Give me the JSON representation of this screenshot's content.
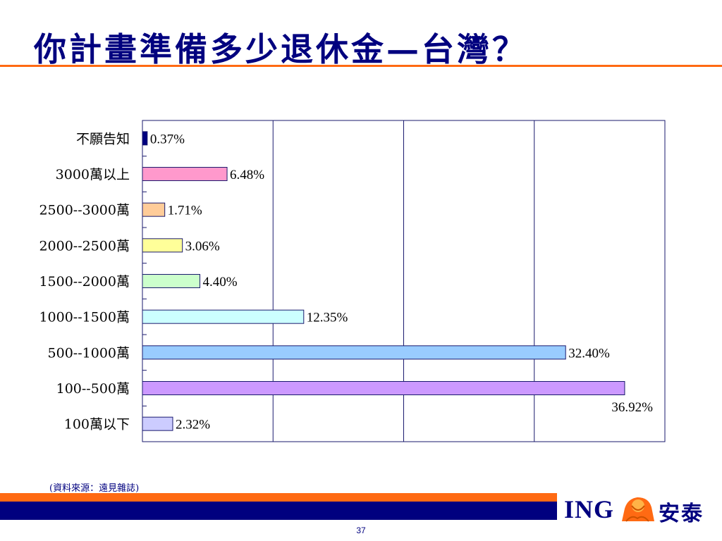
{
  "title": "你計畫準備多少退休金—台灣？",
  "source_note": "(資料來源：遠見雜誌)",
  "page_number": "37",
  "logo": {
    "brand": "ING",
    "name": "安泰",
    "lion_icon": "lion-icon"
  },
  "colors": {
    "title": "#00007f",
    "accent_orange": "#ff6a13",
    "navy": "#00007f",
    "gridline": "#1a1a6e"
  },
  "chart_data": {
    "type": "bar",
    "orientation": "horizontal",
    "categories": [
      "不願告知",
      "3000萬以上",
      "2500--3000萬",
      "2000--2500萬",
      "1500--2000萬",
      "1000--1500萬",
      "500--1000萬",
      "100--500萬",
      "100萬以下"
    ],
    "values": [
      0.37,
      6.48,
      1.71,
      3.06,
      4.4,
      12.35,
      32.4,
      36.92,
      2.32
    ],
    "value_labels": [
      "0.37%",
      "6.48%",
      "1.71%",
      "3.06%",
      "4.40%",
      "12.35%",
      "32.40%",
      "36.92%",
      "2.32%"
    ],
    "bar_colors": [
      "#00007f",
      "#ff99cc",
      "#ffcc99",
      "#ffff99",
      "#ccffcc",
      "#ccffff",
      "#99ccff",
      "#cc99ff",
      "#ccccff"
    ],
    "xlim": [
      0,
      40
    ],
    "x_gridlines": [
      10,
      20,
      30
    ],
    "grid": true,
    "legend": "none"
  }
}
